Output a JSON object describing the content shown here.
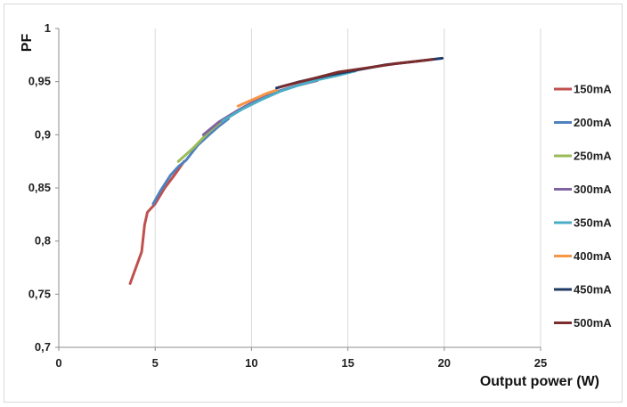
{
  "chart_data": {
    "type": "line",
    "title": "",
    "xlabel": "Output power (W)",
    "ylabel": "PF",
    "xlim": [
      0,
      25
    ],
    "ylim": [
      0.7,
      1
    ],
    "x_ticks": [
      0,
      5,
      10,
      15,
      20,
      25
    ],
    "y_ticks": [
      0.7,
      0.75,
      0.8,
      0.85,
      0.9,
      0.95,
      1
    ],
    "x_tick_labels": [
      "0",
      "5",
      "10",
      "15",
      "20",
      "25"
    ],
    "y_tick_labels": [
      "0,7",
      "0,75",
      "0,8",
      "0,85",
      "0,9",
      "0,95",
      "1"
    ],
    "grid": "vertical",
    "legend_position": "right",
    "series": [
      {
        "name": "150mA",
        "color": "#c0504d",
        "x": [
          3.7,
          4.0,
          4.3,
          4.45,
          4.6,
          5.0,
          5.5,
          6.0,
          6.5
        ],
        "y": [
          0.76,
          0.775,
          0.79,
          0.815,
          0.827,
          0.835,
          0.85,
          0.862,
          0.875
        ]
      },
      {
        "name": "200mA",
        "color": "#4f81bd",
        "x": [
          4.9,
          5.3,
          5.8,
          6.2,
          6.6,
          7.2,
          7.8,
          8.3,
          8.8
        ],
        "y": [
          0.835,
          0.848,
          0.862,
          0.87,
          0.876,
          0.89,
          0.9,
          0.908,
          0.915
        ]
      },
      {
        "name": "250mA",
        "color": "#9bbb59",
        "x": [
          6.2,
          7.0,
          7.8,
          8.6,
          9.4,
          10.2,
          11.0
        ],
        "y": [
          0.875,
          0.888,
          0.903,
          0.915,
          0.924,
          0.931,
          0.938
        ]
      },
      {
        "name": "300mA",
        "color": "#8064a2",
        "x": [
          7.5,
          8.3,
          9.2,
          10.2,
          11.2,
          12.3,
          13.4
        ],
        "y": [
          0.9,
          0.912,
          0.922,
          0.932,
          0.94,
          0.946,
          0.951
        ]
      },
      {
        "name": "350mA",
        "color": "#4bacc6",
        "x": [
          8.5,
          9.5,
          10.5,
          11.5,
          12.5,
          13.5,
          14.5,
          15.4
        ],
        "y": [
          0.913,
          0.924,
          0.933,
          0.941,
          0.947,
          0.952,
          0.956,
          0.96
        ]
      },
      {
        "name": "400mA",
        "color": "#f79646",
        "x": [
          9.3,
          9.8,
          10.3,
          10.8,
          11.3
        ],
        "y": [
          0.927,
          0.931,
          0.935,
          0.939,
          0.942
        ]
      },
      {
        "name": "450mA",
        "color": "#1f3864",
        "x": [
          11.3,
          12.5,
          14.0,
          15.5,
          17.0,
          18.5,
          19.9
        ],
        "y": [
          0.944,
          0.95,
          0.956,
          0.961,
          0.966,
          0.969,
          0.972
        ]
      },
      {
        "name": "500mA",
        "color": "#7b2c2c",
        "x": [
          11.5,
          13.0,
          14.5,
          16.0,
          17.5,
          19.0,
          19.4
        ],
        "y": [
          0.945,
          0.952,
          0.959,
          0.963,
          0.967,
          0.97,
          0.971
        ]
      }
    ]
  }
}
